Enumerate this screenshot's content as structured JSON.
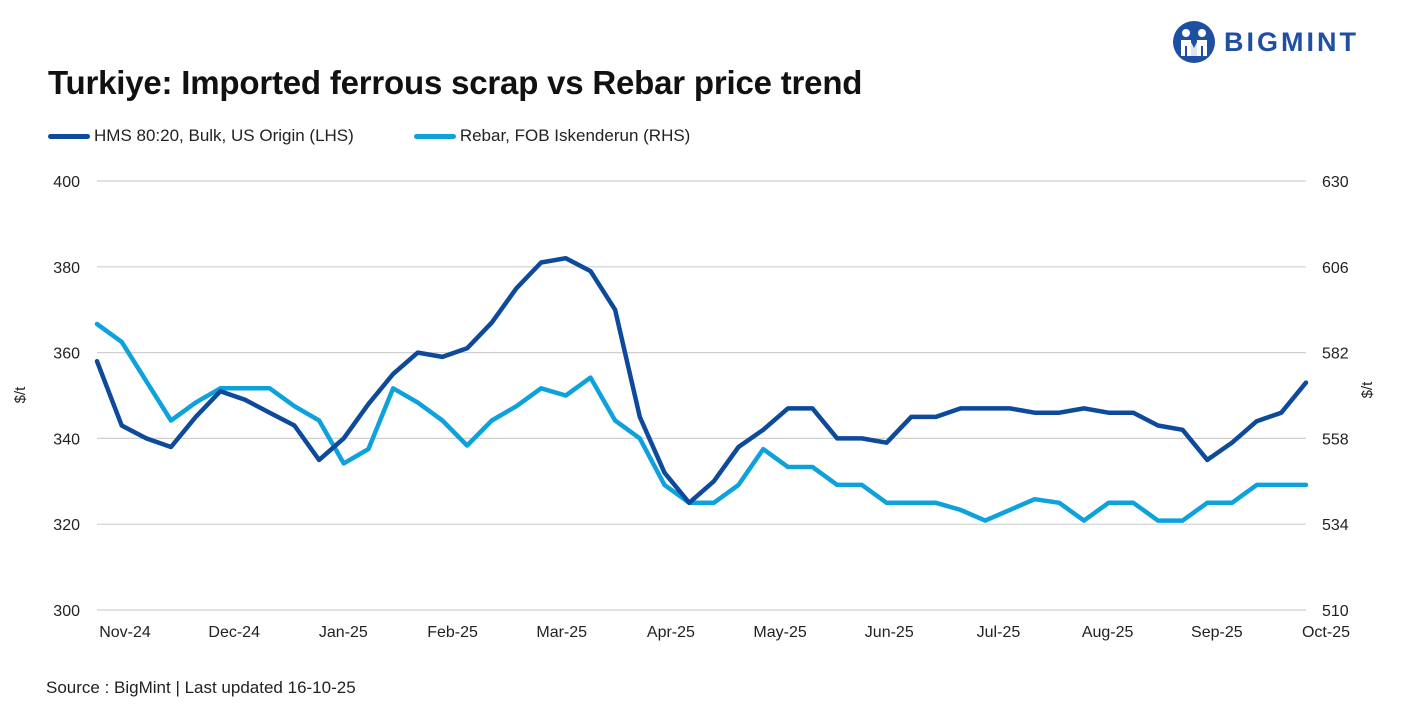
{
  "brand": {
    "name": "BIGMINT",
    "color": "#1f4fa3"
  },
  "title": "Turkiye: Imported ferrous scrap vs Rebar price trend",
  "source": "Source : BigMint | Last updated 16-10-25",
  "chart_data": {
    "type": "line",
    "title": "Turkiye: Imported ferrous scrap vs Rebar price trend",
    "xlabel": "",
    "ylabel_left": "$/t",
    "ylabel_right": "$/t",
    "ylim_left": [
      300,
      400
    ],
    "ylim_right": [
      510,
      630
    ],
    "yticks_left": [
      "400",
      "380",
      "360",
      "340",
      "320",
      "300"
    ],
    "yticks_right": [
      "630",
      "606",
      "582",
      "558",
      "534",
      "510"
    ],
    "grid": true,
    "legend_position": "top-left",
    "x_labels": [
      "Nov-24",
      "Dec-24",
      "Jan-25",
      "Feb-25",
      "Mar-25",
      "Apr-25",
      "May-25",
      "Jun-25",
      "Jul-25",
      "Aug-25",
      "Sep-25",
      "Oct-25"
    ],
    "series": [
      {
        "name": "HMS 80:20, Bulk, US Origin (LHS)",
        "axis": "left",
        "color": "#0d4a9b",
        "values": [
          358,
          343,
          340,
          338,
          345,
          351,
          349,
          346,
          343,
          335,
          340,
          348,
          355,
          360,
          359,
          361,
          367,
          375,
          381,
          382,
          379,
          370,
          345,
          332,
          325,
          330,
          338,
          342,
          347,
          347,
          340,
          340,
          339,
          345,
          345,
          347,
          347,
          347,
          346,
          346,
          347,
          346,
          346,
          343,
          342,
          335,
          339,
          344,
          346,
          353
        ]
      },
      {
        "name": "Rebar, FOB Iskenderun (RHS)",
        "axis": "right",
        "color": "#0ea2dc",
        "values": [
          590,
          585,
          574,
          563,
          568,
          572,
          572,
          572,
          567,
          563,
          551,
          555,
          572,
          568,
          563,
          556,
          563,
          567,
          572,
          570,
          575,
          563,
          558,
          545,
          540,
          540,
          545,
          555,
          550,
          550,
          545,
          545,
          540,
          540,
          540,
          538,
          535,
          538,
          541,
          540,
          535,
          540,
          540,
          535,
          535,
          540,
          540,
          545,
          545,
          545
        ]
      }
    ]
  }
}
